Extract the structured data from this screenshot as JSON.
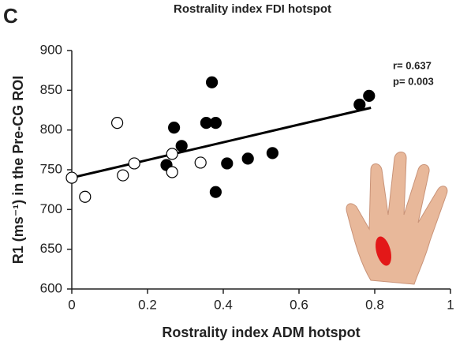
{
  "chart_data": {
    "type": "scatter",
    "panel": "C",
    "title": "Rostrality index FDI  hotspot",
    "xlabel": "Rostrality index ADM  hotspot",
    "ylabel": "R1 (ms⁻¹) in the Pre-CG ROI",
    "annotations": [
      "r= 0.637",
      "p= 0.003"
    ],
    "xlim": [
      0,
      1
    ],
    "ylim": [
      600,
      900
    ],
    "xticks": [
      0,
      0.2,
      0.4,
      0.6,
      0.8,
      1
    ],
    "yticks": [
      600,
      650,
      700,
      750,
      800,
      850,
      900
    ],
    "series": [
      {
        "color": "#000000",
        "marker": "filled",
        "x": [
          0.27,
          0.29,
          0.25,
          0.355,
          0.38,
          0.37,
          0.41,
          0.38,
          0.465,
          0.53,
          0.76,
          0.785
        ],
        "values": [
          803,
          780,
          756,
          809,
          809,
          860,
          758,
          722,
          764,
          771,
          832,
          843
        ]
      },
      {
        "color": "#000000",
        "marker": "open",
        "x": [
          0,
          0.035,
          0.12,
          0.135,
          0.165,
          0.265,
          0.265,
          0.34
        ],
        "values": [
          740,
          716,
          809,
          743,
          758,
          770,
          747,
          759
        ]
      }
    ],
    "fit": {
      "x": [
        0,
        0.79
      ],
      "values": [
        740,
        828
      ]
    }
  }
}
